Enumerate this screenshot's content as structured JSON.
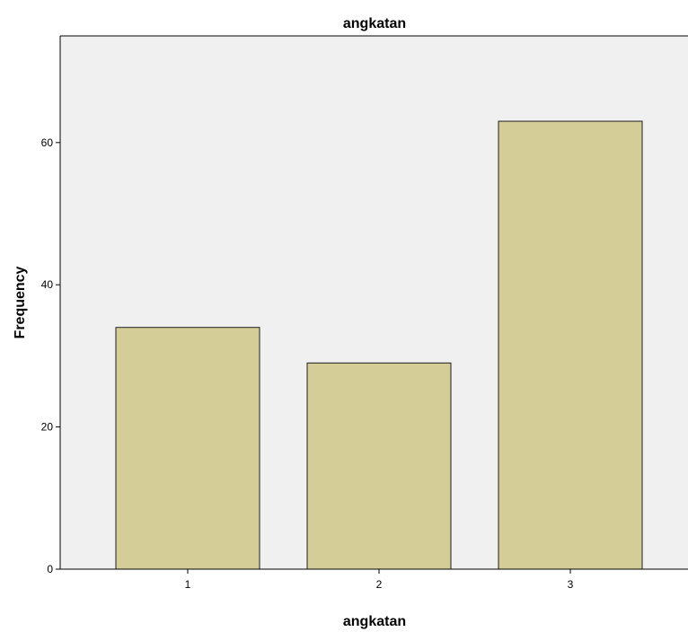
{
  "chart_data": {
    "type": "bar",
    "title": "angkatan",
    "xlabel": "angkatan",
    "ylabel": "Frequency",
    "categories": [
      "1",
      "2",
      "3"
    ],
    "values": [
      34,
      29,
      63
    ],
    "ylim": [
      0,
      75
    ],
    "yticks": [
      0,
      20,
      40,
      60
    ],
    "grid": false,
    "legend": "none",
    "colors": {
      "bar_fill": "#d4cd98",
      "bar_stroke": "#1f1f1f",
      "plot_background": "#f0f0f0",
      "axis": "#000000"
    }
  }
}
